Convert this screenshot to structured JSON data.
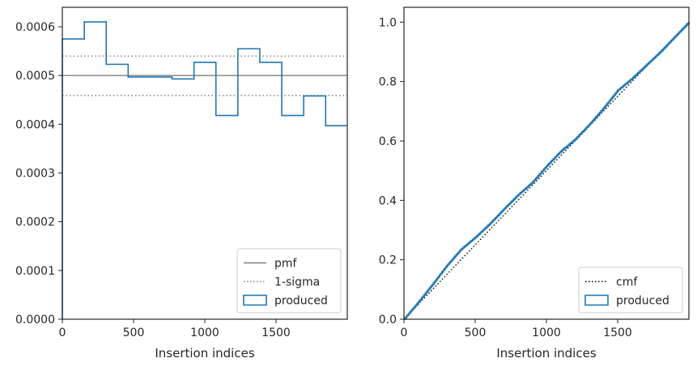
{
  "chart_data": [
    {
      "type": "line",
      "title": "",
      "xlabel": "Insertion indices",
      "ylabel": "",
      "xlim": [
        0,
        2000
      ],
      "ylim": [
        0,
        0.00064
      ],
      "xticks": [
        0,
        500,
        1000,
        1500
      ],
      "xtick_labels": [
        "0",
        "500",
        "1000",
        "1500"
      ],
      "yticks": [
        0,
        0.0001,
        0.0002,
        0.0003,
        0.0004,
        0.0005,
        0.0006
      ],
      "ytick_labels": [
        "0.0000",
        "0.0001",
        "0.0002",
        "0.0003",
        "0.0004",
        "0.0005",
        "0.0006"
      ],
      "grid": false,
      "legend_position": "lower right",
      "series": [
        {
          "name": "pmf",
          "kind": "hline",
          "style": "solid",
          "color": "#808080",
          "y": 0.0005
        },
        {
          "name": "1-sigma",
          "kind": "hlines",
          "style": "dotted",
          "color": "#808080",
          "y": [
            0.00054,
            0.000459
          ]
        },
        {
          "name": "produced",
          "kind": "step-histogram",
          "color": "#1f77b4",
          "bin_edges": [
            0,
            154,
            308,
            462,
            616,
            770,
            924,
            1078,
            1232,
            1386,
            1540,
            1694,
            1848,
            2000
          ],
          "values": [
            0.000575,
            0.00061,
            0.000523,
            0.000497,
            0.000497,
            0.000493,
            0.000527,
            0.000418,
            0.000555,
            0.000527,
            0.000418,
            0.000458,
            0.000397
          ]
        }
      ]
    },
    {
      "type": "line",
      "title": "",
      "xlabel": "Insertion indices",
      "ylabel": "",
      "xlim": [
        0,
        2000
      ],
      "ylim": [
        0,
        1.05
      ],
      "xticks": [
        0,
        500,
        1000,
        1500
      ],
      "xtick_labels": [
        "0",
        "500",
        "1000",
        "1500"
      ],
      "yticks": [
        0,
        0.2,
        0.4,
        0.6,
        0.8,
        1.0
      ],
      "ytick_labels": [
        "0.0",
        "0.2",
        "0.4",
        "0.6",
        "0.8",
        "1.0"
      ],
      "grid": false,
      "legend_position": "lower right",
      "series": [
        {
          "name": "cmf",
          "kind": "line",
          "style": "dotted",
          "color": "#000000",
          "x": [
            0,
            2000
          ],
          "y": [
            0,
            1.0
          ]
        },
        {
          "name": "produced",
          "kind": "step-cdf",
          "color": "#1f77b4",
          "x": [
            0,
            100,
            200,
            300,
            400,
            500,
            600,
            700,
            800,
            900,
            1000,
            1100,
            1200,
            1300,
            1400,
            1500,
            1600,
            1700,
            1800,
            1900,
            2000
          ],
          "y": [
            0,
            0.057,
            0.117,
            0.18,
            0.235,
            0.275,
            0.32,
            0.37,
            0.418,
            0.46,
            0.515,
            0.565,
            0.605,
            0.655,
            0.71,
            0.77,
            0.81,
            0.855,
            0.9,
            0.95,
            1.0
          ]
        }
      ]
    }
  ]
}
